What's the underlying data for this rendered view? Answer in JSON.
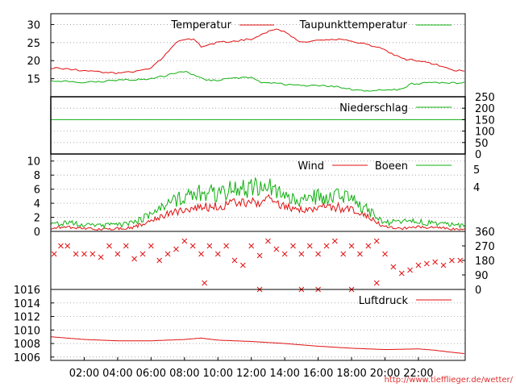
{
  "colors": {
    "red": "#e01010",
    "green": "#10b010",
    "grid": "#999999",
    "credit": "#e03030"
  },
  "credit": "http://www.tiefflieger.de/wetter/",
  "x_ticks": [
    "02:00",
    "04:00",
    "06:00",
    "08:00",
    "10:00",
    "12:00",
    "14:00",
    "16:00",
    "18:00",
    "20:00",
    "22:00"
  ],
  "chart_data": [
    {
      "type": "line",
      "panel": "temperature",
      "x_range_hours": [
        0,
        24.8
      ],
      "ylim": [
        10,
        33
      ],
      "yticks": [
        "15",
        "20",
        "25",
        "30"
      ],
      "grid": true,
      "legend_position": "top-right",
      "series": [
        {
          "name": "Temperatur",
          "color": "#e01010",
          "points": [
            [
              0,
              18
            ],
            [
              1,
              17.8
            ],
            [
              2,
              17.2
            ],
            [
              3,
              16.8
            ],
            [
              4,
              16.5
            ],
            [
              5,
              17
            ],
            [
              6,
              18
            ],
            [
              6.5,
              20
            ],
            [
              7,
              22.5
            ],
            [
              7.5,
              25
            ],
            [
              8,
              26
            ],
            [
              8.5,
              26
            ],
            [
              9,
              24
            ],
            [
              10,
              25
            ],
            [
              11,
              25.5
            ],
            [
              12,
              26
            ],
            [
              13,
              28
            ],
            [
              13.5,
              29
            ],
            [
              14,
              28
            ],
            [
              15,
              25
            ],
            [
              16,
              25.5
            ],
            [
              17,
              26
            ],
            [
              18,
              25.5
            ],
            [
              19,
              24.5
            ],
            [
              20,
              23
            ],
            [
              21,
              20.5
            ],
            [
              22,
              20
            ],
            [
              23,
              19
            ],
            [
              24,
              17.5
            ],
            [
              24.8,
              17
            ]
          ]
        },
        {
          "name": "Taupunkttemperatur",
          "color": "#10b010",
          "points": [
            [
              0,
              14.5
            ],
            [
              2,
              14
            ],
            [
              4,
              14.5
            ],
            [
              6,
              15
            ],
            [
              7,
              16
            ],
            [
              8,
              17
            ],
            [
              8.5,
              16
            ],
            [
              9.5,
              14.5
            ],
            [
              11,
              15
            ],
            [
              12,
              15.5
            ],
            [
              12.5,
              14
            ],
            [
              14,
              13.5
            ],
            [
              15,
              13
            ],
            [
              16,
              13.2
            ],
            [
              17,
              12.8
            ],
            [
              18,
              12
            ],
            [
              19,
              11.5
            ],
            [
              20,
              12
            ],
            [
              21,
              12
            ],
            [
              21.5,
              13.5
            ],
            [
              23,
              14
            ],
            [
              24.8,
              13.8
            ]
          ]
        }
      ]
    },
    {
      "type": "line",
      "panel": "precipitation",
      "ylim": [
        0,
        250
      ],
      "yticks": [
        "0",
        "50",
        "100",
        "150",
        "200",
        "250"
      ],
      "grid": true,
      "legend_position": "top-right",
      "series": [
        {
          "name": "Niederschlag",
          "color": "#10b010",
          "points": [
            [
              0,
              150
            ],
            [
              24.8,
              150
            ]
          ]
        }
      ]
    },
    {
      "type": "line",
      "panel": "wind",
      "ylim": [
        0,
        11
      ],
      "yticks": [
        "0",
        "2",
        "4",
        "6",
        "8",
        "10"
      ],
      "right_ticks": [
        "4",
        "5"
      ],
      "grid": true,
      "legend_position": "top-right",
      "series": [
        {
          "name": "Wind",
          "color": "#e01010",
          "points": [
            [
              0,
              0.5
            ],
            [
              1,
              0.6
            ],
            [
              2,
              0.4
            ],
            [
              3,
              0.3
            ],
            [
              4,
              0.4
            ],
            [
              5,
              0.6
            ],
            [
              6,
              1.5
            ],
            [
              7,
              2.5
            ],
            [
              8,
              3
            ],
            [
              9,
              3.5
            ],
            [
              10,
              3.5
            ],
            [
              11,
              4
            ],
            [
              12,
              4
            ],
            [
              13,
              4.5
            ],
            [
              14,
              3.5
            ],
            [
              15,
              3
            ],
            [
              16,
              3.5
            ],
            [
              17,
              3.5
            ],
            [
              18,
              3
            ],
            [
              19,
              2
            ],
            [
              20,
              0.6
            ],
            [
              21,
              0.4
            ],
            [
              22,
              0.6
            ],
            [
              23,
              0.5
            ],
            [
              24,
              0.4
            ],
            [
              24.8,
              0.3
            ]
          ]
        },
        {
          "name": "Boeen",
          "color": "#10b010",
          "points": [
            [
              0,
              1
            ],
            [
              1,
              1.2
            ],
            [
              2,
              0.9
            ],
            [
              3,
              0.8
            ],
            [
              4,
              0.9
            ],
            [
              5,
              1.2
            ],
            [
              6,
              2.5
            ],
            [
              7,
              4
            ],
            [
              8,
              5
            ],
            [
              9,
              5.5
            ],
            [
              10,
              5.5
            ],
            [
              11,
              6
            ],
            [
              12,
              6.2
            ],
            [
              13,
              6.5
            ],
            [
              14,
              5.5
            ],
            [
              15,
              4.5
            ],
            [
              16,
              5
            ],
            [
              17,
              5
            ],
            [
              18,
              4.5
            ],
            [
              19,
              3
            ],
            [
              20,
              1.2
            ],
            [
              21,
              1.5
            ],
            [
              22,
              1.3
            ],
            [
              23,
              1.2
            ],
            [
              24,
              1
            ],
            [
              24.8,
              0.8
            ]
          ]
        }
      ]
    },
    {
      "type": "scatter",
      "panel": "wind_direction",
      "ylim": [
        0,
        360
      ],
      "yticks": [
        "0",
        "90",
        "180",
        "270",
        "360"
      ],
      "series": [
        {
          "color": "#e01010",
          "points": [
            [
              0.2,
              220
            ],
            [
              0.6,
              270
            ],
            [
              1,
              270
            ],
            [
              1.5,
              220
            ],
            [
              2,
              220
            ],
            [
              2.5,
              220
            ],
            [
              3,
              200
            ],
            [
              3.5,
              270
            ],
            [
              4,
              220
            ],
            [
              4.5,
              270
            ],
            [
              5,
              190
            ],
            [
              5.5,
              220
            ],
            [
              6,
              270
            ],
            [
              6.5,
              180
            ],
            [
              7,
              220
            ],
            [
              7.5,
              250
            ],
            [
              8,
              300
            ],
            [
              8.5,
              270
            ],
            [
              9,
              220
            ],
            [
              9.5,
              270
            ],
            [
              10,
              220
            ],
            [
              10.5,
              270
            ],
            [
              11,
              180
            ],
            [
              11.5,
              150
            ],
            [
              12,
              270
            ],
            [
              12.5,
              210
            ],
            [
              13,
              300
            ],
            [
              13.5,
              250
            ],
            [
              14,
              220
            ],
            [
              14.5,
              270
            ],
            [
              15,
              220
            ],
            [
              15.5,
              270
            ],
            [
              16,
              220
            ],
            [
              16.5,
              270
            ],
            [
              17,
              300
            ],
            [
              17.5,
              220
            ],
            [
              18,
              270
            ],
            [
              18.5,
              220
            ],
            [
              19,
              270
            ],
            [
              19.5,
              300
            ],
            [
              20,
              220
            ],
            [
              20.5,
              140
            ],
            [
              21,
              100
            ],
            [
              21.5,
              120
            ],
            [
              22,
              150
            ],
            [
              22.5,
              160
            ],
            [
              23,
              170
            ],
            [
              23.5,
              150
            ],
            [
              24,
              180
            ],
            [
              24.5,
              180
            ],
            [
              9.2,
              40
            ],
            [
              12.5,
              0
            ],
            [
              15,
              0
            ],
            [
              16,
              0
            ],
            [
              18,
              0
            ],
            [
              19.5,
              40
            ]
          ]
        }
      ]
    },
    {
      "type": "line",
      "panel": "pressure",
      "ylim": [
        1005.5,
        1016
      ],
      "yticks": [
        "1006",
        "1008",
        "1010",
        "1012",
        "1014",
        "1016"
      ],
      "grid": true,
      "legend_position": "top-right",
      "series": [
        {
          "name": "Luftdruck",
          "color": "#e01010",
          "points": [
            [
              0,
              1009
            ],
            [
              2,
              1008.6
            ],
            [
              4,
              1008.4
            ],
            [
              6,
              1008.4
            ],
            [
              8,
              1008.6
            ],
            [
              9,
              1008.8
            ],
            [
              10,
              1008.5
            ],
            [
              12,
              1008.3
            ],
            [
              14,
              1008
            ],
            [
              16,
              1007.6
            ],
            [
              18,
              1007.3
            ],
            [
              20,
              1007.1
            ],
            [
              22,
              1007.2
            ],
            [
              23,
              1007
            ],
            [
              24,
              1006.7
            ],
            [
              24.8,
              1006.5
            ]
          ]
        }
      ]
    }
  ]
}
